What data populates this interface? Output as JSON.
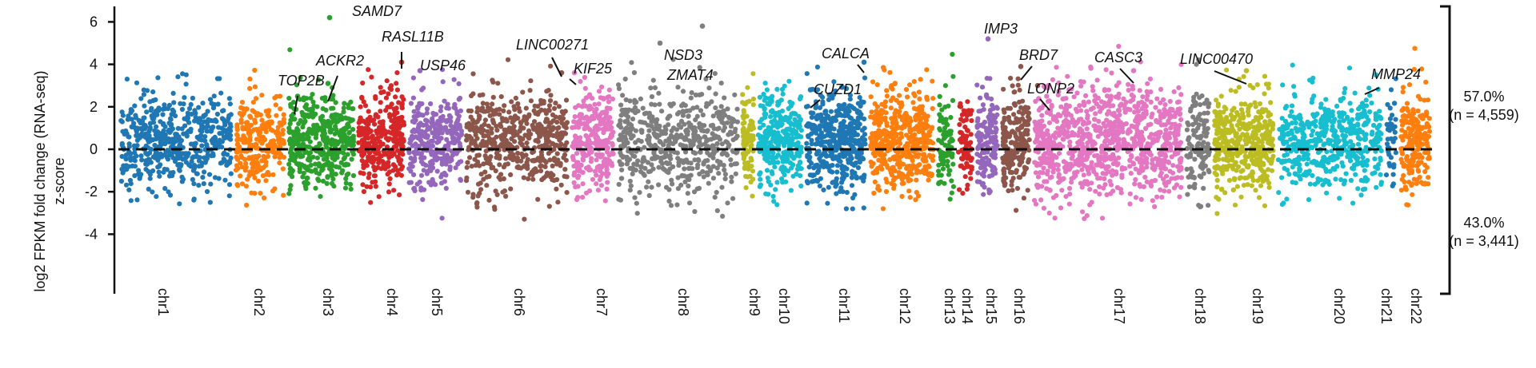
{
  "chart_data": {
    "type": "scatter",
    "ylabel_line1": "log2 FPKM fold change (RNA-seq)",
    "ylabel_line2": "z-score",
    "ylim": [
      -4,
      6.5
    ],
    "yticks": [
      "6",
      "4",
      "2",
      "0",
      "-2",
      "-4"
    ],
    "yticks_values": [
      6,
      4,
      2,
      0,
      -2,
      -4
    ],
    "reference_line": 0,
    "grid": false,
    "legend": "none",
    "chromosomes": [
      {
        "name": "chr1",
        "color": "#1f77b4",
        "n": 520
      },
      {
        "name": "chr2",
        "color": "#ff7f0e",
        "n": 260
      },
      {
        "name": "chr3",
        "color": "#2ca02c",
        "n": 420
      },
      {
        "name": "chr4",
        "color": "#d62728",
        "n": 300
      },
      {
        "name": "chr5",
        "color": "#9467bd",
        "n": 300
      },
      {
        "name": "chr6",
        "color": "#8c564b",
        "n": 520
      },
      {
        "name": "chr7",
        "color": "#e377c2",
        "n": 280
      },
      {
        "name": "chr8",
        "color": "#7f7f7f",
        "n": 520
      },
      {
        "name": "chr9",
        "color": "#bcbd22",
        "n": 90
      },
      {
        "name": "chr10",
        "color": "#17becf",
        "n": 300
      },
      {
        "name": "chr11",
        "color": "#1f77b4",
        "n": 420
      },
      {
        "name": "chr12",
        "color": "#ff7f0e",
        "n": 460
      },
      {
        "name": "chr13",
        "color": "#2ca02c",
        "n": 90
      },
      {
        "name": "chr14",
        "color": "#d62728",
        "n": 80
      },
      {
        "name": "chr15",
        "color": "#9467bd",
        "n": 150
      },
      {
        "name": "chr16",
        "color": "#8c564b",
        "n": 200
      },
      {
        "name": "chr17",
        "color": "#e377c2",
        "n": 900
      },
      {
        "name": "chr18",
        "color": "#7f7f7f",
        "n": 120
      },
      {
        "name": "chr19",
        "color": "#bcbd22",
        "n": 420
      },
      {
        "name": "chr20",
        "color": "#17becf",
        "n": 520
      },
      {
        "name": "chr21",
        "color": "#1f77b4",
        "n": 40
      },
      {
        "name": "chr22",
        "color": "#ff7f0e",
        "n": 200
      }
    ],
    "annotations": [
      {
        "gene": "SAMD7",
        "chr": "chr3",
        "y": 6.2,
        "color": "#2ca02c"
      },
      {
        "gene": "TOP2B",
        "chr": "chr3",
        "y": 2.5,
        "color": "#2ca02c"
      },
      {
        "gene": "ACKR2",
        "chr": "chr3",
        "y": 3.1,
        "color": "#2ca02c"
      },
      {
        "gene": "RASL11B",
        "chr": "chr4",
        "y": 4.1,
        "color": "#d62728"
      },
      {
        "gene": "USP46",
        "chr": "chr5",
        "y": 3.7,
        "color": "#9467bd"
      },
      {
        "gene": "LINC00271",
        "chr": "chr6",
        "y": 3.6,
        "color": "#8c564b"
      },
      {
        "gene": "KIF25",
        "chr": "chr7",
        "y": 3.6,
        "color": "#e377c2"
      },
      {
        "gene": "NSD3",
        "chr": "chr8",
        "y": 5.8,
        "color": "#7f7f7f"
      },
      {
        "gene": "ZMAT4",
        "chr": "chr8",
        "y": 5.0,
        "color": "#7f7f7f"
      },
      {
        "gene": "CALCA",
        "chr": "chr11",
        "y": 4.1,
        "color": "#1f77b4"
      },
      {
        "gene": "CUZD1",
        "chr": "chr11",
        "y": 2.8,
        "color": "#1f77b4"
      },
      {
        "gene": "IMP3",
        "chr": "chr15",
        "y": 5.2,
        "color": "#9467bd"
      },
      {
        "gene": "BRD7",
        "chr": "chr16",
        "y": 3.9,
        "color": "#8c564b"
      },
      {
        "gene": "LONP2",
        "chr": "chr16",
        "y": 3.0,
        "color": "#8c564b"
      },
      {
        "gene": "CASC3",
        "chr": "chr17",
        "y": 3.7,
        "color": "#e377c2"
      },
      {
        "gene": "LINC00470",
        "chr": "chr19",
        "y": 3.7,
        "color": "#bcbd22"
      },
      {
        "gene": "MMP24",
        "chr": "chr20",
        "y": 3.5,
        "color": "#17becf"
      }
    ],
    "summary": [
      {
        "side": "above zero",
        "percent": "57.0%",
        "count": "(n = 4,559)"
      },
      {
        "side": "below zero",
        "percent": "43.0%",
        "count": "(n = 3,441)"
      }
    ]
  }
}
